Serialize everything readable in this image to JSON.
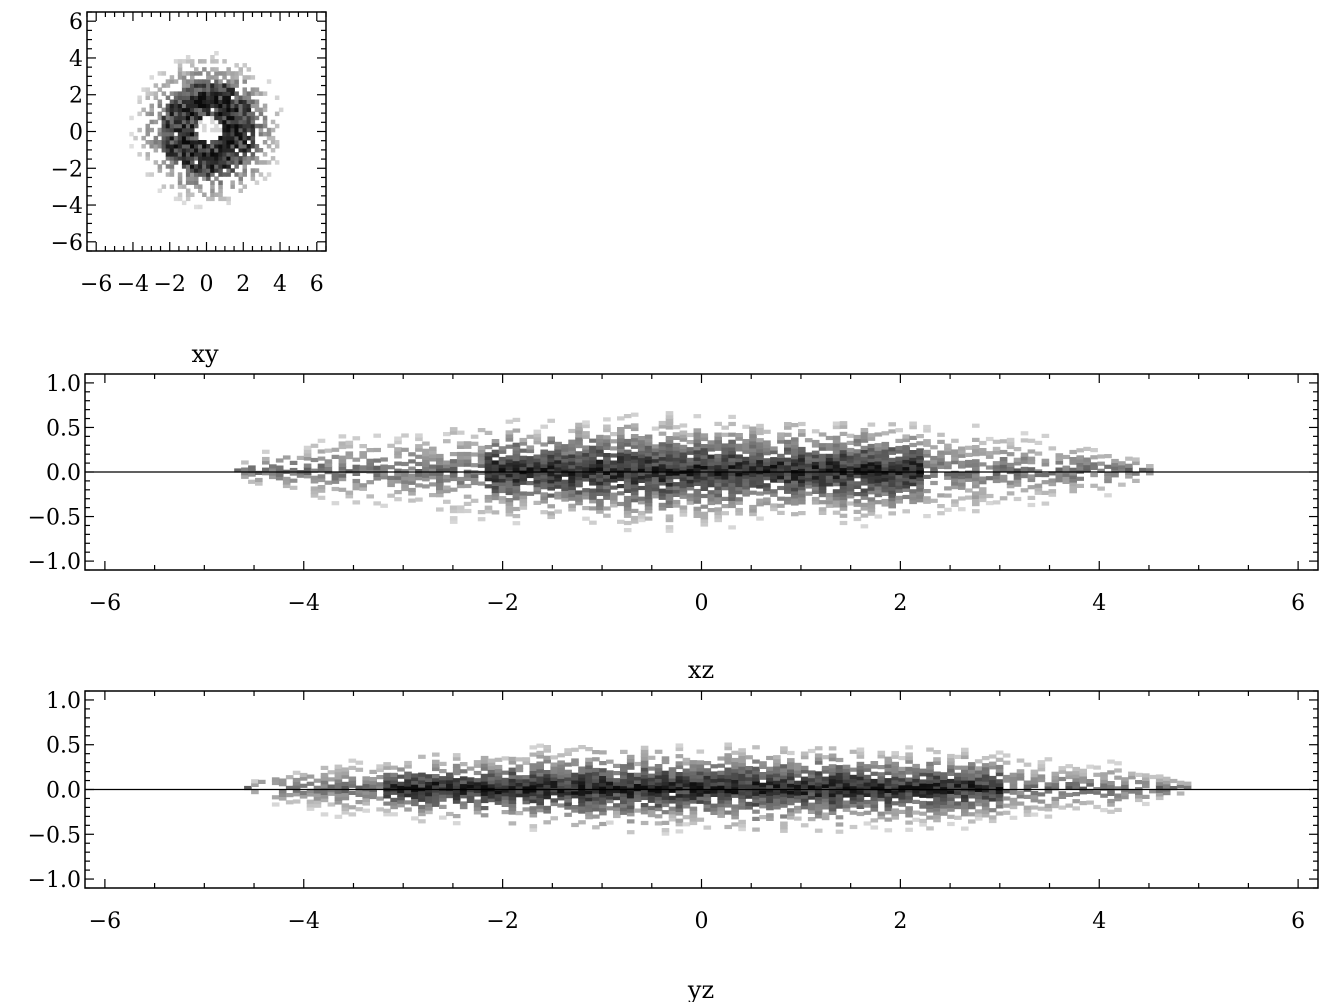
{
  "chart_data": [
    {
      "type": "heatmap",
      "xlim": [
        -6.5,
        6.5
      ],
      "ylim": [
        -6.5,
        6.5
      ],
      "x_ticks": [
        -6,
        -4,
        -2,
        0,
        2,
        4,
        6
      ],
      "y_ticks": [
        -6,
        -4,
        -2,
        0,
        2,
        4,
        6
      ],
      "x_tick_labels": [
        "−6",
        "−4",
        "−2",
        "0",
        "2",
        "4",
        "6"
      ],
      "y_tick_labels": [
        "−6",
        "−4",
        "−2",
        "0",
        "2",
        "4",
        "6"
      ],
      "title": "xy",
      "density": {
        "shape": "disk",
        "center": [
          0,
          0
        ],
        "outer_radius": 4.3,
        "dense_ring": [
          1.2,
          2.6
        ],
        "central_hole_radius": 0.7
      }
    },
    {
      "type": "heatmap",
      "xlim": [
        -6.2,
        6.2
      ],
      "ylim": [
        -1.1,
        1.1
      ],
      "x_ticks": [
        -6,
        -4,
        -2,
        0,
        2,
        4,
        6
      ],
      "y_ticks": [
        -1.0,
        -0.5,
        0.0,
        0.5,
        1.0
      ],
      "x_tick_labels": [
        "−6",
        "−4",
        "−2",
        "0",
        "2",
        "4",
        "6"
      ],
      "y_tick_labels": [
        "−1.0",
        "−0.5",
        "0.0",
        "0.5",
        "1.0"
      ],
      "title": "xz",
      "zero_line": true,
      "density": {
        "x_extent": [
          -4.7,
          4.5
        ],
        "max_thickness": 0.62,
        "dense_core": [
          -2.2,
          2.2
        ]
      }
    },
    {
      "type": "heatmap",
      "xlim": [
        -6.2,
        6.2
      ],
      "ylim": [
        -1.1,
        1.1
      ],
      "x_ticks": [
        -6,
        -4,
        -2,
        0,
        2,
        4,
        6
      ],
      "y_ticks": [
        -1.0,
        -0.5,
        0.0,
        0.5,
        1.0
      ],
      "x_tick_labels": [
        "−6",
        "−4",
        "−2",
        "0",
        "2",
        "4",
        "6"
      ],
      "y_tick_labels": [
        "−1.0",
        "−0.5",
        "0.0",
        "0.5",
        "1.0"
      ],
      "title": "yz",
      "zero_line": true,
      "density": {
        "x_extent": [
          -4.6,
          4.9
        ],
        "max_thickness": 0.5,
        "dense_core": [
          -3.2,
          3.0
        ]
      }
    }
  ]
}
